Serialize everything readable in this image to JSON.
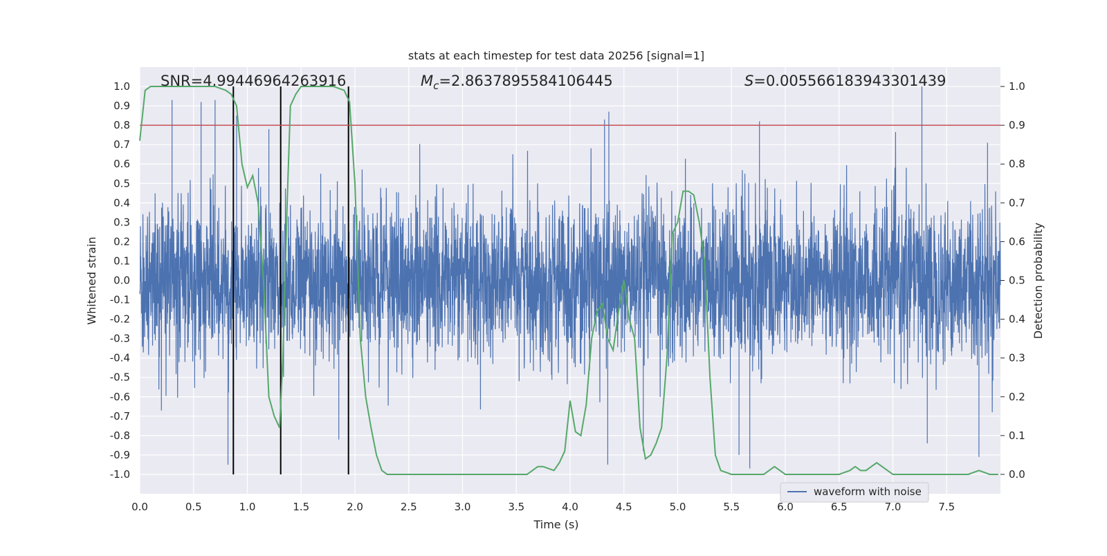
{
  "chart_data": {
    "type": "line",
    "title": "stats at each timestep for test data 20256 [signal=1]",
    "xlabel": "Time (s)",
    "ylabel": "Whitened strain",
    "ylabel_right": "Detection probability",
    "xlim": [
      0,
      8
    ],
    "ylim": [
      -1.1,
      1.1
    ],
    "ylim_right": [
      -0.05,
      1.05
    ],
    "x_ticks": [
      "0.0",
      "0.5",
      "1.0",
      "1.5",
      "2.0",
      "2.5",
      "3.0",
      "3.5",
      "4.0",
      "4.5",
      "5.0",
      "5.5",
      "6.0",
      "6.5",
      "7.0",
      "7.5"
    ],
    "y_ticks": [
      "-1.0",
      "-0.9",
      "-0.8",
      "-0.7",
      "-0.6",
      "-0.5",
      "-0.4",
      "-0.3",
      "-0.2",
      "-0.1",
      "0.0",
      "0.1",
      "0.2",
      "0.3",
      "0.4",
      "0.5",
      "0.6",
      "0.7",
      "0.8",
      "0.9",
      "1.0"
    ],
    "y_ticks_right": [
      "0.0",
      "0.1",
      "0.2",
      "0.3",
      "0.4",
      "0.5",
      "0.6",
      "0.7",
      "0.8",
      "0.9",
      "1.0"
    ],
    "grid": true,
    "annotations": {
      "snr": "SNR=4.99446964263916",
      "mc_symbol": "M",
      "mc_sub": "c",
      "mc_value": "=2.8637895584106445",
      "s_symbol": "S",
      "s_value": "=0.005566183943301439"
    },
    "threshold": {
      "value": 0.9,
      "axis": "right",
      "color": "#c44e52"
    },
    "detection_lines_x": [
      0.87,
      1.31,
      1.94
    ],
    "detection_lines_range": [
      0.0,
      1.0
    ],
    "series": [
      {
        "name": "waveform with noise",
        "axis": "left",
        "color": "#4c72b0",
        "description_envelope": {
          "x": [
            0.0,
            0.5,
            1.0,
            1.5,
            2.0,
            2.5,
            3.0,
            3.5,
            4.0,
            4.5,
            5.0,
            5.5,
            6.0,
            6.5,
            7.0,
            7.5,
            8.0
          ],
          "typical_max": [
            0.45,
            0.45,
            0.45,
            0.45,
            0.45,
            0.45,
            0.45,
            0.45,
            0.45,
            0.45,
            0.45,
            0.45,
            0.45,
            0.45,
            0.45,
            0.45,
            0.45
          ],
          "peaks": [
            {
              "x": 0.3,
              "y": 0.93
            },
            {
              "x": 0.57,
              "y": 0.92
            },
            {
              "x": 0.7,
              "y": 0.93
            },
            {
              "x": 0.9,
              "y": 0.85
            },
            {
              "x": 1.2,
              "y": 0.78
            },
            {
              "x": 4.36,
              "y": 0.87
            },
            {
              "x": 4.32,
              "y": 0.83
            },
            {
              "x": 5.76,
              "y": 0.82
            },
            {
              "x": 7.27,
              "y": 1.0
            },
            {
              "x": 7.88,
              "y": 0.71
            },
            {
              "x": 0.82,
              "y": -0.95
            },
            {
              "x": 1.85,
              "y": -0.82
            },
            {
              "x": 4.35,
              "y": -0.95
            },
            {
              "x": 4.68,
              "y": -0.88
            },
            {
              "x": 5.57,
              "y": -0.9
            },
            {
              "x": 5.67,
              "y": -0.97
            },
            {
              "x": 7.32,
              "y": -0.84
            },
            {
              "x": 7.8,
              "y": -0.91
            }
          ]
        }
      },
      {
        "name": "detection probability",
        "axis": "right",
        "color": "#55a868",
        "x": [
          0.0,
          0.05,
          0.1,
          0.2,
          0.4,
          0.6,
          0.7,
          0.8,
          0.85,
          0.9,
          0.95,
          1.0,
          1.05,
          1.1,
          1.15,
          1.2,
          1.25,
          1.3,
          1.33,
          1.37,
          1.4,
          1.45,
          1.5,
          1.6,
          1.8,
          1.9,
          1.95,
          2.0,
          2.05,
          2.1,
          2.15,
          2.2,
          2.25,
          2.3,
          2.4,
          2.6,
          2.8,
          3.0,
          3.2,
          3.4,
          3.6,
          3.65,
          3.7,
          3.75,
          3.8,
          3.85,
          3.9,
          3.95,
          4.0,
          4.05,
          4.1,
          4.15,
          4.2,
          4.25,
          4.3,
          4.35,
          4.4,
          4.45,
          4.5,
          4.55,
          4.6,
          4.65,
          4.7,
          4.75,
          4.8,
          4.85,
          4.9,
          4.95,
          5.0,
          5.05,
          5.1,
          5.15,
          5.2,
          5.25,
          5.3,
          5.35,
          5.4,
          5.5,
          5.6,
          5.7,
          5.8,
          5.85,
          5.9,
          5.95,
          6.0,
          6.1,
          6.2,
          6.3,
          6.4,
          6.5,
          6.6,
          6.65,
          6.7,
          6.75,
          6.8,
          6.85,
          6.9,
          6.95,
          7.0,
          7.1,
          7.2,
          7.3,
          7.4,
          7.5,
          7.6,
          7.7,
          7.8,
          7.9,
          7.98
        ],
        "values": [
          0.86,
          0.99,
          1.0,
          1.0,
          1.0,
          1.0,
          1.0,
          0.99,
          0.98,
          0.95,
          0.8,
          0.74,
          0.77,
          0.7,
          0.5,
          0.2,
          0.15,
          0.12,
          0.3,
          0.7,
          0.95,
          0.98,
          1.0,
          1.0,
          1.0,
          0.99,
          0.96,
          0.75,
          0.35,
          0.2,
          0.12,
          0.05,
          0.01,
          0.0,
          0.0,
          0.0,
          0.0,
          0.0,
          0.0,
          0.0,
          0.0,
          0.01,
          0.02,
          0.02,
          0.015,
          0.01,
          0.03,
          0.06,
          0.19,
          0.11,
          0.1,
          0.18,
          0.35,
          0.42,
          0.44,
          0.35,
          0.32,
          0.42,
          0.5,
          0.4,
          0.35,
          0.12,
          0.04,
          0.05,
          0.08,
          0.12,
          0.3,
          0.62,
          0.65,
          0.73,
          0.73,
          0.72,
          0.65,
          0.55,
          0.25,
          0.05,
          0.01,
          0.0,
          0.0,
          0.0,
          0.0,
          0.01,
          0.02,
          0.01,
          0.0,
          0.0,
          0.0,
          0.0,
          0.0,
          0.0,
          0.01,
          0.02,
          0.01,
          0.01,
          0.02,
          0.03,
          0.02,
          0.01,
          0.0,
          0.0,
          0.0,
          0.0,
          0.0,
          0.0,
          0.0,
          0.0,
          0.01,
          0.0,
          0.0
        ]
      }
    ],
    "legend": {
      "placement": "lower-right",
      "entries": [
        "waveform with noise"
      ]
    }
  },
  "colors": {
    "axes_bg": "#eaeaf2",
    "grid": "#ffffff",
    "waveform": "#4c72b0",
    "probability": "#55a868",
    "threshold": "#c44e52",
    "detection_line": "#000000",
    "text": "#262626"
  }
}
